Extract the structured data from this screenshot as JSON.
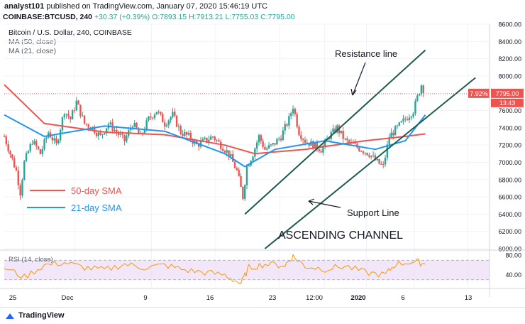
{
  "header": {
    "author": "analyst101",
    "published": "published on TradingView.com, January 07, 2020 15:46:19 UTC",
    "symbol": "COINBASE:BTCUSD, 240",
    "change": "+30.37 (+0.39%)",
    "ohlc": "O:7893.15 H:7913.21 L:7755.03 C:7795.00"
  },
  "legend": {
    "title": "Bitcoin / U.S. Dollar, 240, COINBASE",
    "ma50": "MA (50, close)",
    "ma21": "MA (21, close)",
    "sma50_label": "50-day SMA",
    "sma21_label": "21-day SMA"
  },
  "annotations": {
    "resistance": "Resistance line",
    "support": "Support Line",
    "channel": "ASCENDING CHANNEL"
  },
  "price_axis": {
    "ticks": [
      "8600.00",
      "8400.00",
      "8200.00",
      "8000.00",
      "7600.00",
      "7400.00",
      "7200.00",
      "7000.00",
      "6800.00",
      "6600.00",
      "6400.00",
      "6200.00",
      "6000.00"
    ],
    "current_price": "7795.00",
    "change_badge": "7.92%",
    "countdown": "13:43"
  },
  "rsi": {
    "label": "RSI (14, close)",
    "ticks": [
      "80.00",
      "40.00"
    ]
  },
  "time_axis": {
    "ticks": [
      "25",
      "Dec",
      "9",
      "16",
      "23",
      "12:00",
      "2020",
      "6",
      "13"
    ]
  },
  "footer": {
    "brand": "TradingView"
  },
  "colors": {
    "up": "#26a69a",
    "down": "#ef5350",
    "sma50": "#ef5350",
    "sma21": "#2196f3",
    "channel": "#1e5b4d",
    "rsi_line": "#ff9800",
    "rsi_band": "#e8d7f5"
  },
  "chart_data": {
    "type": "candlestick",
    "title": "Bitcoin / U.S. Dollar, 240, COINBASE",
    "ylim": [
      6000,
      8600
    ],
    "close_path": [
      [
        0,
        7300
      ],
      [
        3,
        7100
      ],
      [
        6,
        6900
      ],
      [
        8,
        6650
      ],
      [
        10,
        7000
      ],
      [
        14,
        7250
      ],
      [
        18,
        7100
      ],
      [
        22,
        7350
      ],
      [
        26,
        7200
      ],
      [
        30,
        7600
      ],
      [
        33,
        7500
      ],
      [
        36,
        7700
      ],
      [
        40,
        7450
      ],
      [
        44,
        7400
      ],
      [
        48,
        7300
      ],
      [
        52,
        7450
      ],
      [
        56,
        7350
      ],
      [
        60,
        7250
      ],
      [
        64,
        7450
      ],
      [
        68,
        7300
      ],
      [
        72,
        7500
      ],
      [
        76,
        7600
      ],
      [
        80,
        7450
      ],
      [
        84,
        7550
      ],
      [
        88,
        7350
      ],
      [
        92,
        7300
      ],
      [
        96,
        7200
      ],
      [
        100,
        7250
      ],
      [
        104,
        7300
      ],
      [
        108,
        7200
      ],
      [
        112,
        7100
      ],
      [
        116,
        6900
      ],
      [
        119,
        6600
      ],
      [
        121,
        6950
      ],
      [
        124,
        7100
      ],
      [
        127,
        7300
      ],
      [
        130,
        7150
      ],
      [
        134,
        7200
      ],
      [
        138,
        7300
      ],
      [
        142,
        7500
      ],
      [
        144,
        7650
      ],
      [
        147,
        7350
      ],
      [
        150,
        7250
      ],
      [
        154,
        7200
      ],
      [
        158,
        7150
      ],
      [
        162,
        7300
      ],
      [
        166,
        7400
      ],
      [
        170,
        7250
      ],
      [
        174,
        7200
      ],
      [
        178,
        7150
      ],
      [
        182,
        7100
      ],
      [
        186,
        7000
      ],
      [
        189,
        6950
      ],
      [
        192,
        7300
      ],
      [
        196,
        7400
      ],
      [
        200,
        7500
      ],
      [
        204,
        7600
      ],
      [
        208,
        7900
      ],
      [
        210,
        7795
      ]
    ],
    "sma50": [
      [
        0,
        7900
      ],
      [
        20,
        7450
      ],
      [
        50,
        7350
      ],
      [
        80,
        7320
      ],
      [
        110,
        7200
      ],
      [
        125,
        7100
      ],
      [
        150,
        7150
      ],
      [
        180,
        7250
      ],
      [
        200,
        7300
      ],
      [
        210,
        7330
      ]
    ],
    "sma21": [
      [
        0,
        7550
      ],
      [
        20,
        7300
      ],
      [
        50,
        7420
      ],
      [
        80,
        7360
      ],
      [
        110,
        7100
      ],
      [
        120,
        6950
      ],
      [
        135,
        7150
      ],
      [
        160,
        7250
      ],
      [
        185,
        7150
      ],
      [
        200,
        7250
      ],
      [
        210,
        7550
      ]
    ],
    "resistance_line": [
      [
        120,
        6400
      ],
      [
        210,
        8300
      ]
    ],
    "support_line": [
      [
        130,
        6000
      ],
      [
        235,
        7980
      ]
    ],
    "rsi_values": [
      [
        0,
        55
      ],
      [
        10,
        35
      ],
      [
        20,
        60
      ],
      [
        30,
        65
      ],
      [
        40,
        55
      ],
      [
        50,
        50
      ],
      [
        60,
        62
      ],
      [
        70,
        55
      ],
      [
        80,
        60
      ],
      [
        90,
        50
      ],
      [
        100,
        45
      ],
      [
        110,
        40
      ],
      [
        118,
        22
      ],
      [
        122,
        55
      ],
      [
        130,
        62
      ],
      [
        140,
        60
      ],
      [
        144,
        78
      ],
      [
        150,
        58
      ],
      [
        160,
        52
      ],
      [
        170,
        58
      ],
      [
        180,
        45
      ],
      [
        190,
        40
      ],
      [
        195,
        62
      ],
      [
        205,
        68
      ],
      [
        210,
        62
      ]
    ]
  }
}
